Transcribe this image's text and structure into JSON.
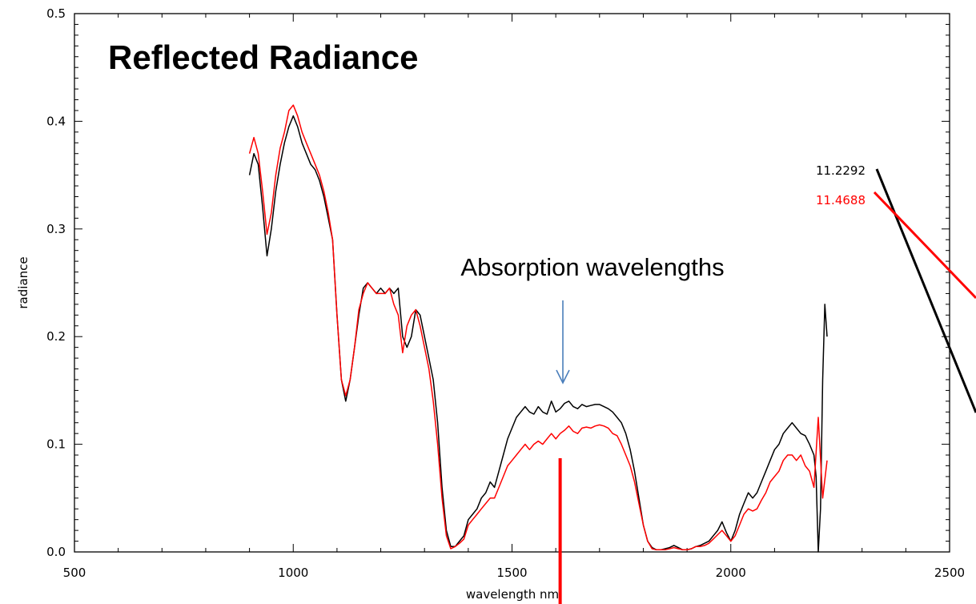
{
  "chart_data": {
    "type": "line",
    "title": "Reflected Radiance",
    "xlabel": "wavelength nm",
    "ylabel": "radiance",
    "xlim": [
      500,
      2500
    ],
    "ylim": [
      0.0,
      0.5
    ],
    "x_ticks": [
      500,
      1000,
      1500,
      2000,
      2500
    ],
    "x_tick_labels": [
      "500",
      "1000",
      "1500",
      "2000",
      "2500"
    ],
    "y_ticks": [
      0.0,
      0.1,
      0.2,
      0.3,
      0.4,
      0.5
    ],
    "y_tick_labels": [
      "0.0",
      "0.1",
      "0.2",
      "0.3",
      "0.4",
      "0.5"
    ],
    "grid": false,
    "annotation": "Absorption wavelengths",
    "marker_wavelength": 1610,
    "readouts": [
      {
        "text": "11.2292",
        "color": "#000000"
      },
      {
        "text": "11.4688",
        "color": "#ff0000"
      }
    ],
    "series": [
      {
        "color": "#000000",
        "x": [
          900,
          910,
          920,
          930,
          940,
          950,
          960,
          970,
          980,
          990,
          1000,
          1010,
          1020,
          1030,
          1040,
          1050,
          1060,
          1070,
          1080,
          1090,
          1100,
          1110,
          1120,
          1130,
          1140,
          1150,
          1160,
          1170,
          1180,
          1190,
          1200,
          1210,
          1220,
          1230,
          1240,
          1250,
          1260,
          1270,
          1280,
          1290,
          1300,
          1310,
          1320,
          1330,
          1340,
          1350,
          1360,
          1370,
          1380,
          1390,
          1400,
          1410,
          1420,
          1430,
          1440,
          1450,
          1460,
          1470,
          1480,
          1490,
          1500,
          1510,
          1520,
          1530,
          1540,
          1550,
          1560,
          1570,
          1580,
          1590,
          1600,
          1610,
          1620,
          1630,
          1640,
          1650,
          1660,
          1670,
          1680,
          1690,
          1700,
          1710,
          1720,
          1730,
          1740,
          1750,
          1760,
          1770,
          1780,
          1790,
          1800,
          1810,
          1820,
          1830,
          1840,
          1850,
          1860,
          1870,
          1880,
          1890,
          1900,
          1910,
          1920,
          1930,
          1940,
          1950,
          1960,
          1970,
          1980,
          1990,
          2000,
          2010,
          2020,
          2030,
          2040,
          2050,
          2060,
          2070,
          2080,
          2090,
          2100,
          2110,
          2120,
          2130,
          2140,
          2150,
          2160,
          2170,
          2180,
          2190,
          2195,
          2200,
          2205,
          2210,
          2215,
          2220
        ],
        "values": [
          0.35,
          0.37,
          0.36,
          0.32,
          0.275,
          0.3,
          0.335,
          0.36,
          0.38,
          0.395,
          0.405,
          0.395,
          0.38,
          0.37,
          0.36,
          0.355,
          0.345,
          0.33,
          0.31,
          0.29,
          0.22,
          0.16,
          0.14,
          0.16,
          0.19,
          0.22,
          0.245,
          0.25,
          0.245,
          0.24,
          0.245,
          0.24,
          0.245,
          0.24,
          0.245,
          0.2,
          0.19,
          0.2,
          0.225,
          0.22,
          0.2,
          0.18,
          0.16,
          0.12,
          0.06,
          0.02,
          0.005,
          0.005,
          0.01,
          0.015,
          0.03,
          0.035,
          0.04,
          0.05,
          0.055,
          0.065,
          0.06,
          0.075,
          0.09,
          0.105,
          0.115,
          0.125,
          0.13,
          0.135,
          0.13,
          0.128,
          0.135,
          0.13,
          0.128,
          0.14,
          0.13,
          0.133,
          0.138,
          0.14,
          0.135,
          0.133,
          0.137,
          0.135,
          0.136,
          0.137,
          0.137,
          0.135,
          0.133,
          0.13,
          0.125,
          0.12,
          0.11,
          0.095,
          0.075,
          0.05,
          0.025,
          0.01,
          0.004,
          0.002,
          0.002,
          0.003,
          0.004,
          0.006,
          0.004,
          0.002,
          0.002,
          0.003,
          0.005,
          0.006,
          0.008,
          0.01,
          0.015,
          0.02,
          0.028,
          0.018,
          0.01,
          0.02,
          0.035,
          0.045,
          0.055,
          0.05,
          0.055,
          0.065,
          0.075,
          0.085,
          0.095,
          0.1,
          0.11,
          0.115,
          0.12,
          0.115,
          0.11,
          0.108,
          0.1,
          0.09,
          0.07,
          0.0,
          0.04,
          0.16,
          0.23,
          0.2
        ]
      },
      {
        "color": "#ff0000",
        "x": [
          900,
          910,
          920,
          930,
          940,
          950,
          960,
          970,
          980,
          990,
          1000,
          1010,
          1020,
          1030,
          1040,
          1050,
          1060,
          1070,
          1080,
          1090,
          1100,
          1110,
          1120,
          1130,
          1140,
          1150,
          1160,
          1170,
          1180,
          1190,
          1200,
          1210,
          1220,
          1230,
          1240,
          1250,
          1260,
          1270,
          1280,
          1290,
          1300,
          1310,
          1320,
          1330,
          1340,
          1350,
          1360,
          1370,
          1380,
          1390,
          1400,
          1410,
          1420,
          1430,
          1440,
          1450,
          1460,
          1470,
          1480,
          1490,
          1500,
          1510,
          1520,
          1530,
          1540,
          1550,
          1560,
          1570,
          1580,
          1590,
          1600,
          1610,
          1620,
          1630,
          1640,
          1650,
          1660,
          1670,
          1680,
          1690,
          1700,
          1710,
          1720,
          1730,
          1740,
          1750,
          1760,
          1770,
          1780,
          1790,
          1800,
          1810,
          1820,
          1830,
          1840,
          1850,
          1860,
          1870,
          1880,
          1890,
          1900,
          1910,
          1920,
          1930,
          1940,
          1950,
          1960,
          1970,
          1980,
          1990,
          2000,
          2010,
          2020,
          2030,
          2040,
          2050,
          2060,
          2070,
          2080,
          2090,
          2100,
          2110,
          2120,
          2130,
          2140,
          2150,
          2160,
          2170,
          2180,
          2190,
          2200,
          2210,
          2220
        ],
        "values": [
          0.37,
          0.385,
          0.37,
          0.335,
          0.295,
          0.315,
          0.35,
          0.375,
          0.39,
          0.41,
          0.415,
          0.405,
          0.39,
          0.38,
          0.37,
          0.36,
          0.35,
          0.335,
          0.315,
          0.29,
          0.22,
          0.16,
          0.145,
          0.16,
          0.19,
          0.225,
          0.24,
          0.25,
          0.245,
          0.24,
          0.24,
          0.24,
          0.245,
          0.23,
          0.22,
          0.185,
          0.21,
          0.22,
          0.225,
          0.21,
          0.19,
          0.17,
          0.14,
          0.1,
          0.05,
          0.015,
          0.003,
          0.005,
          0.008,
          0.012,
          0.025,
          0.03,
          0.035,
          0.04,
          0.045,
          0.05,
          0.05,
          0.06,
          0.07,
          0.08,
          0.085,
          0.09,
          0.095,
          0.1,
          0.095,
          0.1,
          0.103,
          0.1,
          0.105,
          0.11,
          0.105,
          0.11,
          0.113,
          0.117,
          0.112,
          0.11,
          0.115,
          0.116,
          0.115,
          0.117,
          0.118,
          0.117,
          0.115,
          0.11,
          0.108,
          0.1,
          0.09,
          0.08,
          0.065,
          0.045,
          0.025,
          0.01,
          0.003,
          0.002,
          0.002,
          0.002,
          0.003,
          0.004,
          0.003,
          0.002,
          0.002,
          0.003,
          0.005,
          0.005,
          0.006,
          0.008,
          0.012,
          0.016,
          0.02,
          0.015,
          0.01,
          0.015,
          0.025,
          0.035,
          0.04,
          0.038,
          0.04,
          0.048,
          0.055,
          0.065,
          0.07,
          0.075,
          0.085,
          0.09,
          0.09,
          0.085,
          0.09,
          0.08,
          0.075,
          0.06,
          0.125,
          0.05,
          0.085
        ]
      }
    ]
  }
}
